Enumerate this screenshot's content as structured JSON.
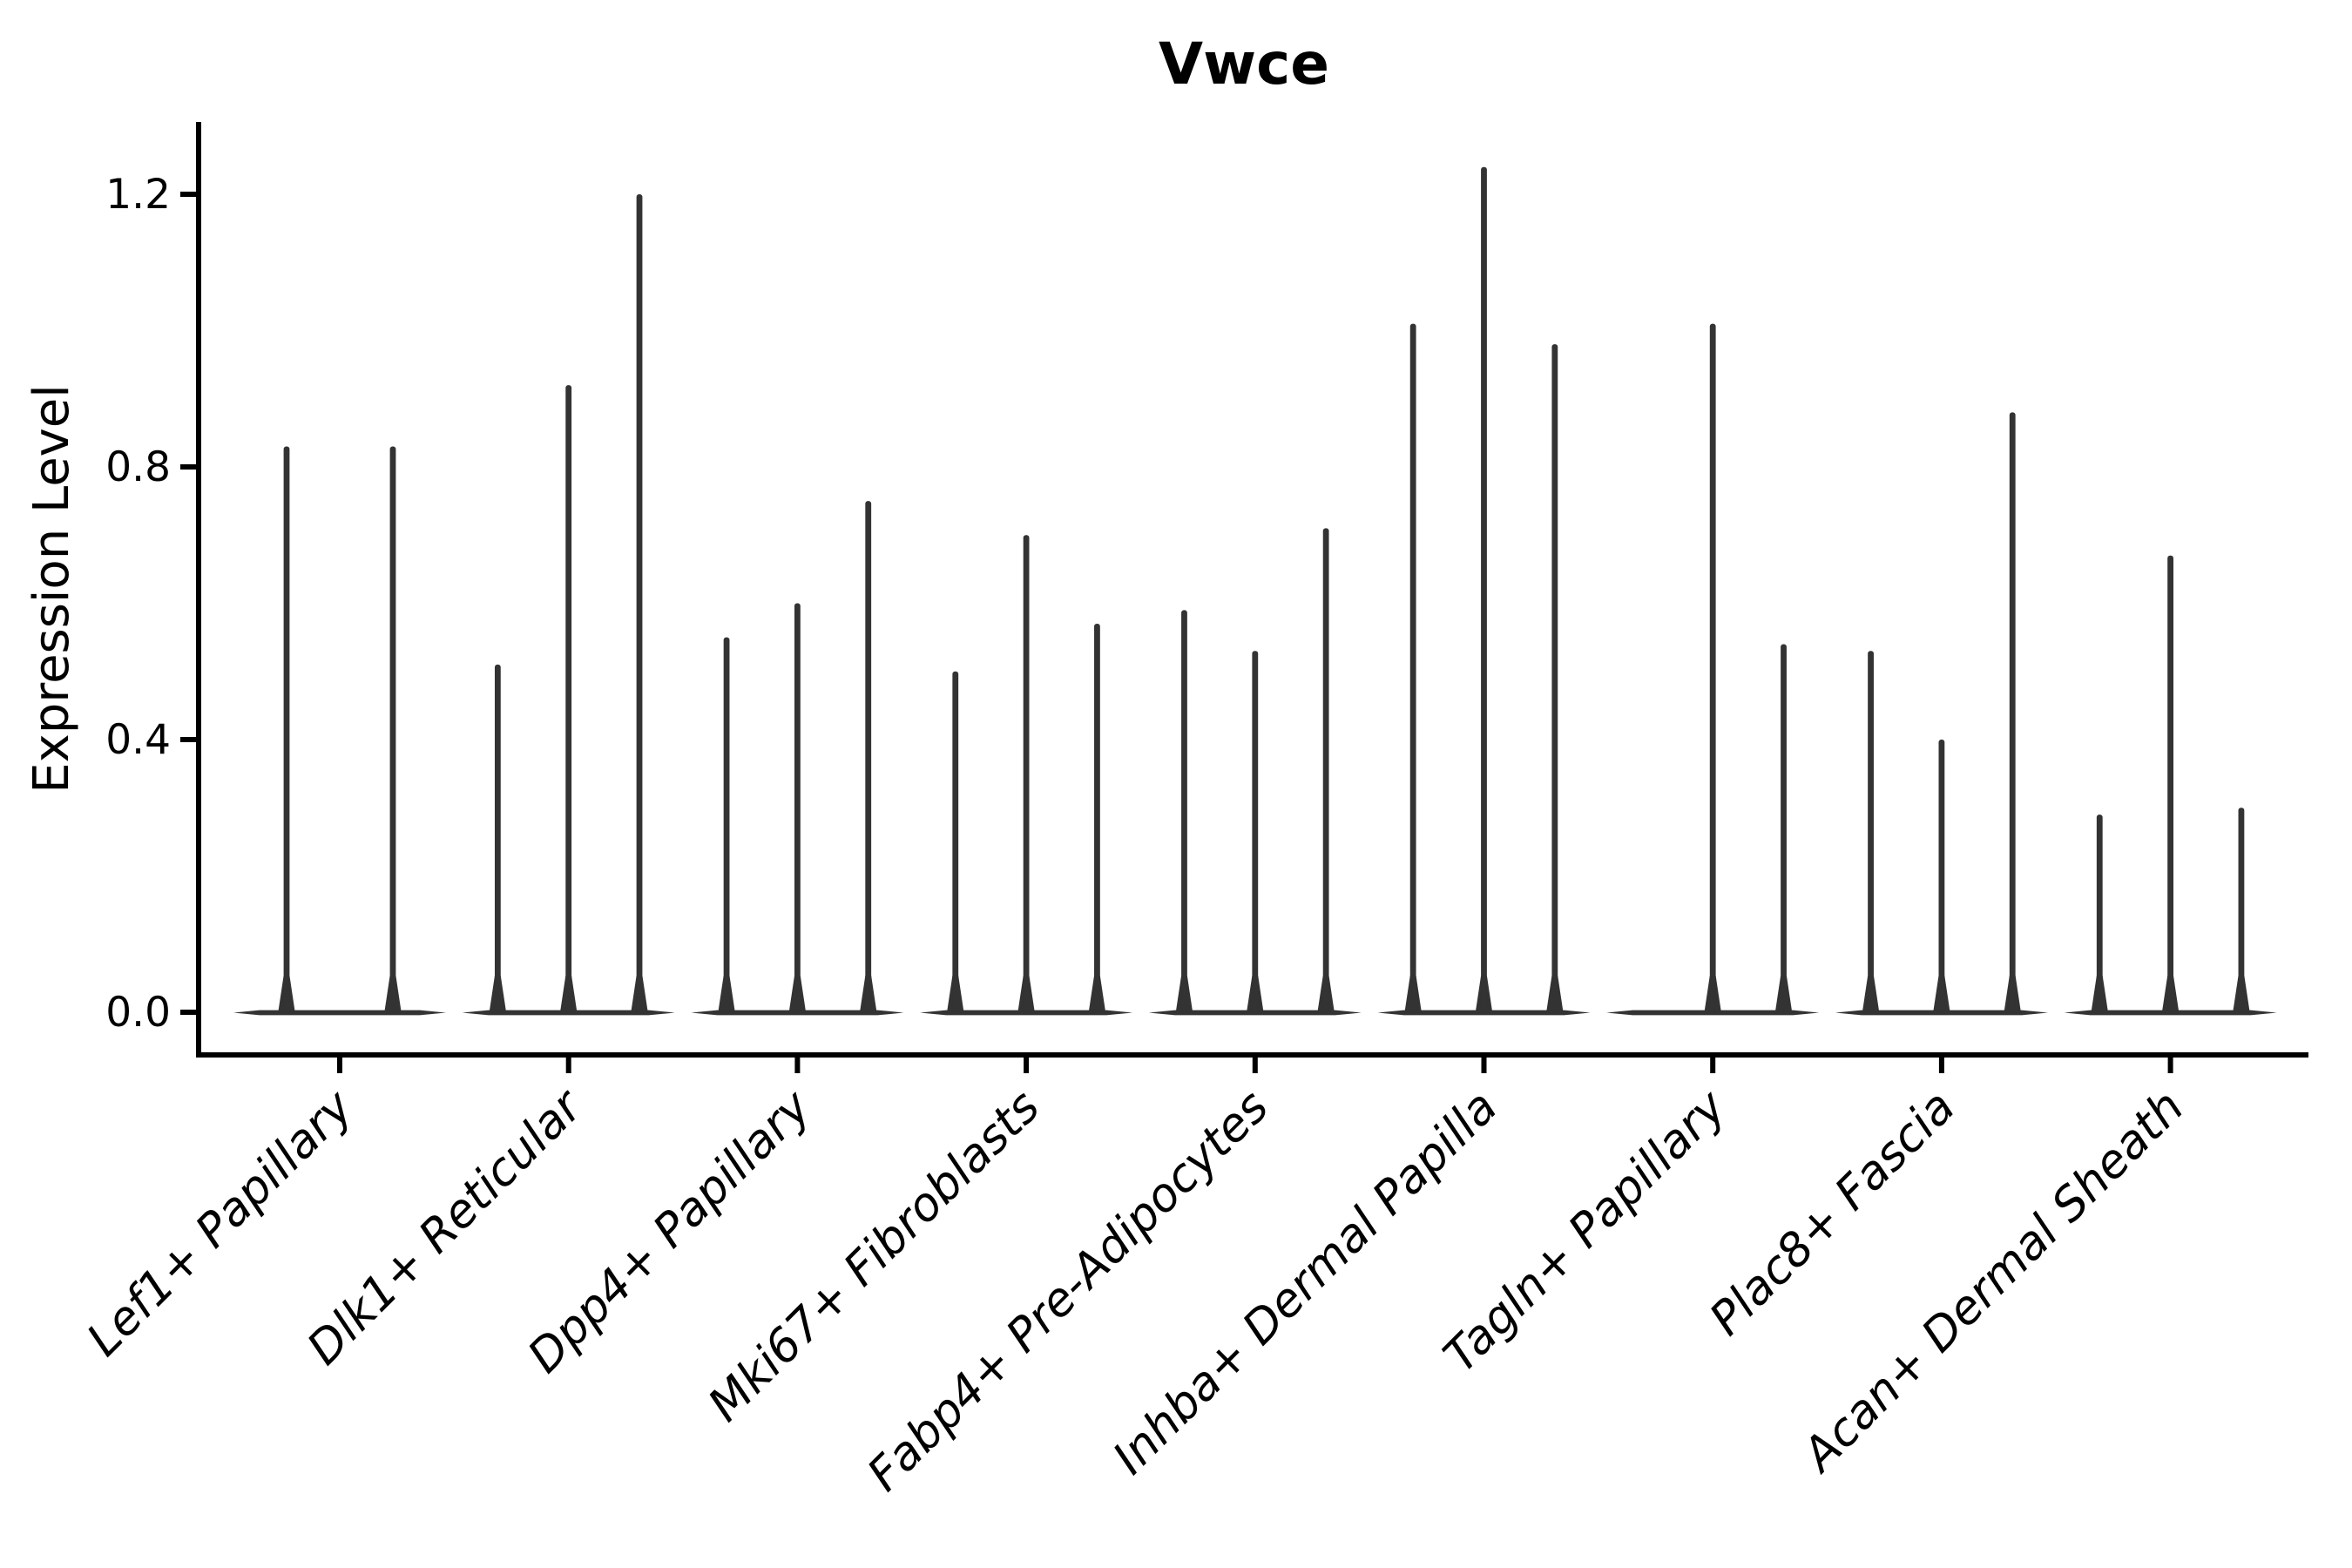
{
  "figure": {
    "title": "Vwce",
    "ylabel": "Expression Level"
  },
  "chart_data": {
    "type": "violin",
    "title": "Vwce",
    "xlabel": "",
    "ylabel": "Expression Level",
    "ylim": [
      -0.06,
      1.31
    ],
    "yticks": [
      0.0,
      0.4,
      0.8,
      1.2
    ],
    "ytick_labels": [
      "0.0",
      "0.4",
      "0.8",
      "1.2"
    ],
    "grid": false,
    "legend": null,
    "categories": [
      "Lef1+ Papillary",
      "Dlk1+ Reticular",
      "Dpp4+ Papillary",
      "Mki67+ Fibroblasts",
      "Fabp4+ Pre-Adipocytes",
      "Inhba+ Dermal Papilla",
      "Tagln+ Papillary",
      "Plac8+ Fascia",
      "Acan+ Dermal Sheath"
    ],
    "series": [
      {
        "category": "Lef1+ Papillary",
        "spike_maxima": [
          0.83,
          0.83
        ]
      },
      {
        "category": "Dlk1+ Reticular",
        "spike_maxima": [
          0.51,
          0.92,
          1.2
        ]
      },
      {
        "category": "Dpp4+ Papillary",
        "spike_maxima": [
          0.55,
          0.6,
          0.75
        ]
      },
      {
        "category": "Mki67+ Fibroblasts",
        "spike_maxima": [
          0.5,
          0.7,
          0.57
        ]
      },
      {
        "category": "Fabp4+ Pre-Adipocytes",
        "spike_maxima": [
          0.59,
          0.53,
          0.71
        ]
      },
      {
        "category": "Inhba+ Dermal Papilla",
        "spike_maxima": [
          1.01,
          1.24,
          0.98
        ]
      },
      {
        "category": "Tagln+ Papillary",
        "spike_maxima": [
          0.0,
          1.01,
          0.54
        ]
      },
      {
        "category": "Plac8+ Fascia",
        "spike_maxima": [
          0.53,
          0.4,
          0.88
        ]
      },
      {
        "category": "Acan+ Dermal Sheath",
        "spike_maxima": [
          0.29,
          0.67,
          0.3
        ]
      }
    ],
    "style": {
      "violin_color": "#333333",
      "axis_color": "#000000",
      "text_color": "#000000",
      "background": "#ffffff",
      "x_label_rotation_deg": 45,
      "x_labels_italic": true
    }
  }
}
